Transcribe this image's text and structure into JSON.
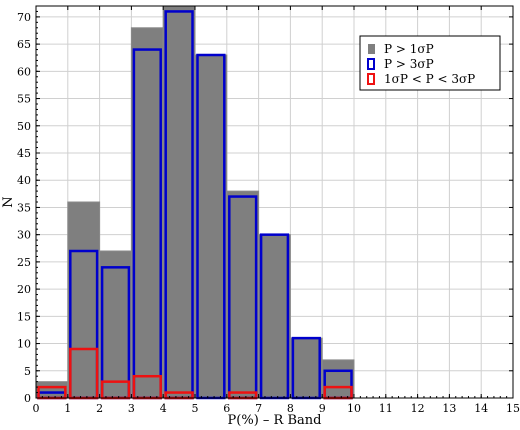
{
  "chart_data": {
    "type": "bar",
    "xlabel": "P(%) – R Band",
    "ylabel": "N",
    "xlim": [
      0,
      15
    ],
    "ylim": [
      0,
      72
    ],
    "grid": true,
    "legend_position": "top-right",
    "bin_edges": [
      0,
      1,
      2,
      3,
      4,
      5,
      6,
      7,
      8,
      9,
      10
    ],
    "x_ticks": [
      "0",
      "1",
      "2",
      "3",
      "4",
      "5",
      "6",
      "7",
      "8",
      "9",
      "10",
      "11",
      "12",
      "13",
      "14",
      "15"
    ],
    "y_ticks": [
      "0",
      "5",
      "10",
      "15",
      "20",
      "25",
      "30",
      "35",
      "40",
      "45",
      "50",
      "55",
      "60",
      "65",
      "70"
    ],
    "series": [
      {
        "name": "P > 1σP",
        "style": "filled",
        "color": "#7f7f7f",
        "values": [
          3,
          36,
          27,
          68,
          72,
          63,
          38,
          30,
          11,
          7
        ]
      },
      {
        "name": "P > 3σP",
        "style": "outline",
        "color": "#0000cc",
        "values": [
          1,
          27,
          24,
          64,
          71,
          63,
          37,
          30,
          11,
          5
        ]
      },
      {
        "name": "1σP < P < 3σP",
        "style": "outline",
        "color": "#ee1111",
        "values": [
          2,
          9,
          3,
          4,
          1,
          0,
          1,
          0,
          0,
          2
        ]
      }
    ]
  }
}
